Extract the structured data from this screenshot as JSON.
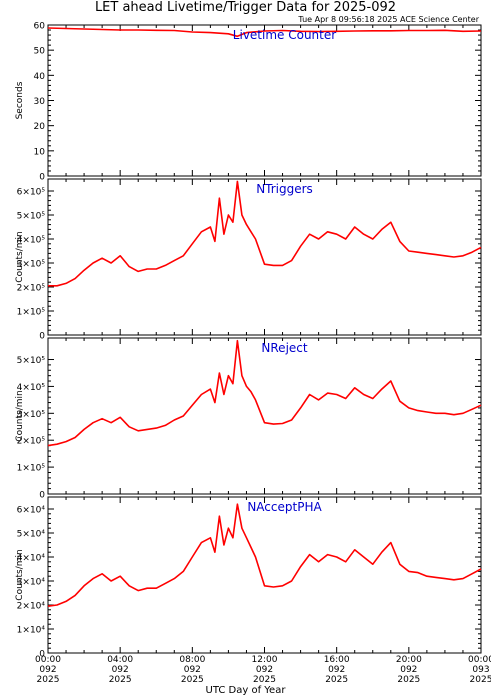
{
  "page": {
    "title": "LET ahead Livetime/Trigger Data for 2025-092",
    "subtitle": "Tue Apr  8 09:56:18 2025 ACE Science Center",
    "xlabel": "UTC Day of Year"
  },
  "colors": {
    "series": "#ff0000",
    "panel_label": "#0000cc",
    "axes": "#000000"
  },
  "chart_data": [
    {
      "type": "line",
      "title": "Livetime Counter",
      "ylabel": "Seconds",
      "ylim": [
        0,
        60
      ],
      "yticks": [
        {
          "v": 0,
          "label": "0"
        },
        {
          "v": 10,
          "label": "10"
        },
        {
          "v": 20,
          "label": "20"
        },
        {
          "v": 30,
          "label": "30"
        },
        {
          "v": 40,
          "label": "40"
        },
        {
          "v": 50,
          "label": "50"
        },
        {
          "v": 60,
          "label": "60"
        }
      ],
      "x_hours": [
        0,
        1,
        2,
        3,
        4,
        5,
        6,
        7,
        8,
        9,
        10,
        10.5,
        11,
        12,
        13,
        14,
        15,
        16,
        17,
        18,
        19,
        20,
        21,
        22,
        23,
        24
      ],
      "values": [
        58.8,
        58.6,
        58.4,
        58.2,
        58.0,
        58.0,
        57.9,
        57.8,
        57.2,
        57.0,
        56.5,
        55.5,
        57.0,
        57.6,
        57.8,
        57.5,
        57.4,
        57.5,
        57.6,
        57.7,
        57.7,
        57.8,
        57.8,
        57.9,
        57.5,
        57.6
      ]
    },
    {
      "type": "line",
      "title": "NTriggers",
      "ylabel": "Counts/min",
      "ylim": [
        0,
        650000
      ],
      "yticks": [
        {
          "v": 0,
          "label": "0"
        },
        {
          "v": 100000,
          "label": "1×10⁵"
        },
        {
          "v": 200000,
          "label": "2×10⁵"
        },
        {
          "v": 300000,
          "label": "3×10⁵"
        },
        {
          "v": 400000,
          "label": "4×10⁵"
        },
        {
          "v": 500000,
          "label": "5×10⁵"
        },
        {
          "v": 600000,
          "label": "6×10⁵"
        }
      ],
      "x_hours": [
        0,
        0.5,
        1,
        1.5,
        2,
        2.5,
        3,
        3.5,
        4,
        4.5,
        5,
        5.5,
        6,
        6.5,
        7,
        7.5,
        8,
        8.5,
        9,
        9.25,
        9.5,
        9.75,
        10,
        10.25,
        10.5,
        10.75,
        11,
        11.25,
        11.5,
        12,
        12.5,
        13,
        13.5,
        14,
        14.5,
        15,
        15.5,
        16,
        16.5,
        17,
        17.5,
        18,
        18.5,
        19,
        19.5,
        20,
        20.5,
        21,
        21.5,
        22,
        22.5,
        23,
        23.5,
        24
      ],
      "values": [
        205000,
        205000,
        215000,
        235000,
        270000,
        300000,
        320000,
        300000,
        330000,
        285000,
        265000,
        275000,
        275000,
        290000,
        310000,
        330000,
        380000,
        430000,
        450000,
        390000,
        570000,
        420000,
        500000,
        470000,
        640000,
        500000,
        460000,
        430000,
        400000,
        295000,
        290000,
        290000,
        310000,
        370000,
        420000,
        400000,
        430000,
        420000,
        400000,
        450000,
        420000,
        400000,
        440000,
        470000,
        390000,
        350000,
        345000,
        340000,
        335000,
        330000,
        325000,
        330000,
        345000,
        365000
      ]
    },
    {
      "type": "line",
      "title": "NReject",
      "ylabel": "Counts/min",
      "ylim": [
        0,
        580000
      ],
      "yticks": [
        {
          "v": 0,
          "label": "0"
        },
        {
          "v": 100000,
          "label": "1×10⁵"
        },
        {
          "v": 200000,
          "label": "2×10⁵"
        },
        {
          "v": 300000,
          "label": "3×10⁵"
        },
        {
          "v": 400000,
          "label": "4×10⁵"
        },
        {
          "v": 500000,
          "label": "5×10⁵"
        }
      ],
      "x_hours": [
        0,
        0.5,
        1,
        1.5,
        2,
        2.5,
        3,
        3.5,
        4,
        4.5,
        5,
        5.5,
        6,
        6.5,
        7,
        7.5,
        8,
        8.5,
        9,
        9.25,
        9.5,
        9.75,
        10,
        10.25,
        10.5,
        10.75,
        11,
        11.25,
        11.5,
        12,
        12.5,
        13,
        13.5,
        14,
        14.5,
        15,
        15.5,
        16,
        16.5,
        17,
        17.5,
        18,
        18.5,
        19,
        19.5,
        20,
        20.5,
        21,
        21.5,
        22,
        22.5,
        23,
        23.5,
        24
      ],
      "values": [
        180000,
        185000,
        195000,
        210000,
        240000,
        265000,
        280000,
        265000,
        285000,
        250000,
        235000,
        240000,
        245000,
        255000,
        275000,
        290000,
        330000,
        370000,
        390000,
        340000,
        450000,
        370000,
        440000,
        410000,
        570000,
        440000,
        400000,
        380000,
        350000,
        265000,
        260000,
        262000,
        275000,
        320000,
        370000,
        350000,
        375000,
        370000,
        355000,
        395000,
        370000,
        355000,
        390000,
        420000,
        345000,
        320000,
        310000,
        305000,
        300000,
        300000,
        295000,
        300000,
        315000,
        330000
      ]
    },
    {
      "type": "line",
      "title": "NAcceptPHA",
      "ylabel": "Counts/min",
      "ylim": [
        0,
        65000
      ],
      "yticks": [
        {
          "v": 0,
          "label": "0"
        },
        {
          "v": 10000,
          "label": "1×10⁴"
        },
        {
          "v": 20000,
          "label": "2×10⁴"
        },
        {
          "v": 30000,
          "label": "3×10⁴"
        },
        {
          "v": 40000,
          "label": "4×10⁴"
        },
        {
          "v": 50000,
          "label": "5×10⁴"
        },
        {
          "v": 60000,
          "label": "6×10⁴"
        }
      ],
      "x_hours": [
        0,
        0.5,
        1,
        1.5,
        2,
        2.5,
        3,
        3.5,
        4,
        4.5,
        5,
        5.5,
        6,
        6.5,
        7,
        7.5,
        8,
        8.5,
        9,
        9.25,
        9.5,
        9.75,
        10,
        10.25,
        10.5,
        10.75,
        11,
        11.25,
        11.5,
        12,
        12.5,
        13,
        13.5,
        14,
        14.5,
        15,
        15.5,
        16,
        16.5,
        17,
        17.5,
        18,
        18.5,
        19,
        19.5,
        20,
        20.5,
        21,
        21.5,
        22,
        22.5,
        23,
        23.5,
        24
      ],
      "values": [
        19500,
        20000,
        21500,
        24000,
        28000,
        31000,
        33000,
        30000,
        32000,
        28000,
        26000,
        27000,
        27000,
        29000,
        31000,
        34000,
        40000,
        46000,
        48000,
        42000,
        57000,
        45000,
        52000,
        48000,
        62000,
        52000,
        48000,
        44000,
        40000,
        28000,
        27500,
        28000,
        30000,
        36000,
        41000,
        38000,
        41000,
        40000,
        38000,
        43000,
        40000,
        37000,
        42000,
        46000,
        37000,
        34000,
        33500,
        32000,
        31500,
        31000,
        30500,
        31000,
        33000,
        35000
      ]
    }
  ],
  "x_axis": {
    "ticks": [
      {
        "hour": 0,
        "time": "00:00",
        "day": "092",
        "year": "2025"
      },
      {
        "hour": 4,
        "time": "04:00",
        "day": "092",
        "year": "2025"
      },
      {
        "hour": 8,
        "time": "08:00",
        "day": "092",
        "year": "2025"
      },
      {
        "hour": 12,
        "time": "12:00",
        "day": "092",
        "year": "2025"
      },
      {
        "hour": 16,
        "time": "16:00",
        "day": "092",
        "year": "2025"
      },
      {
        "hour": 20,
        "time": "20:00",
        "day": "092",
        "year": "2025"
      },
      {
        "hour": 24,
        "time": "00:00",
        "day": "093",
        "year": "2025"
      }
    ]
  }
}
